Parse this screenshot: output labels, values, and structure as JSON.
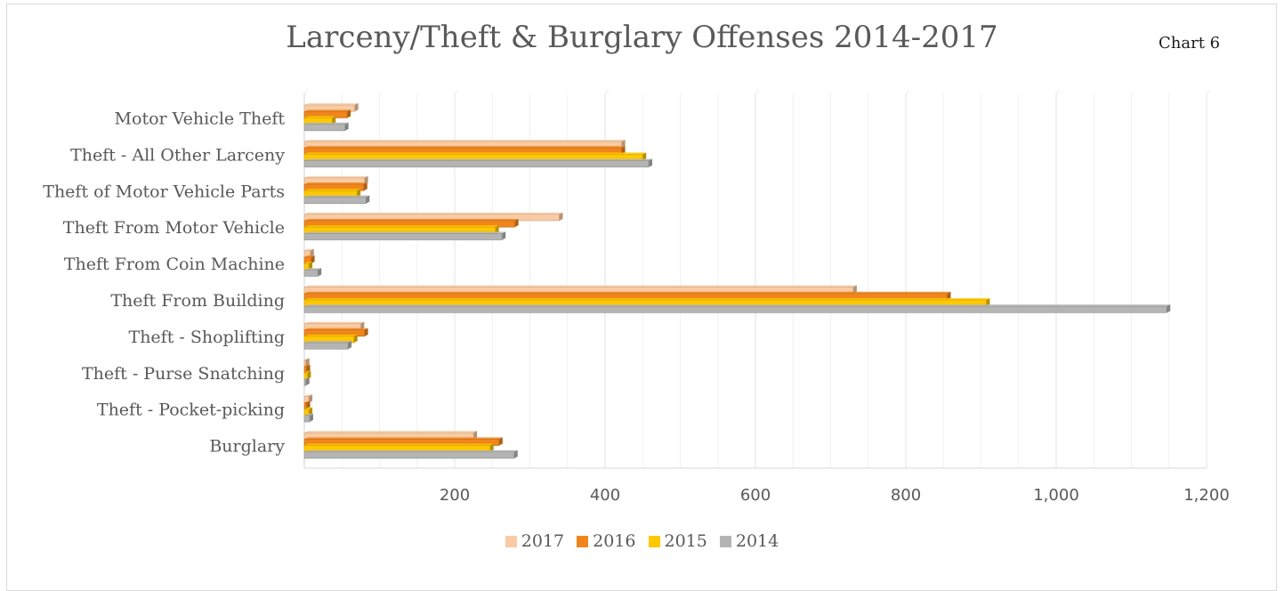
{
  "chart_data": {
    "type": "bar",
    "orientation": "horizontal",
    "title": "Larceny/Theft & Burglary Offenses 2014-2017",
    "tag": "Chart 6",
    "categories": [
      "Motor Vehicle Theft",
      "Theft - All Other Larceny",
      "Theft of Motor Vehicle Parts",
      "Theft From Motor Vehicle",
      "Theft From Coin Machine",
      "Theft From Building",
      "Theft - Shoplifting",
      "Theft - Purse Snatching",
      "Theft - Pocket-picking",
      "Burglary"
    ],
    "series": [
      {
        "name": "2017",
        "color": "#f8cba4",
        "values": [
          67,
          422,
          80,
          339,
          8,
          730,
          75,
          2,
          6,
          225
        ]
      },
      {
        "name": "2016",
        "color": "#f0851c",
        "values": [
          57,
          422,
          79,
          280,
          9,
          855,
          80,
          3,
          3,
          259
        ]
      },
      {
        "name": "2015",
        "color": "#ffc800",
        "values": [
          37,
          450,
          70,
          254,
          6,
          907,
          66,
          4,
          6,
          247
        ]
      },
      {
        "name": "2014",
        "color": "#b4b4b4",
        "values": [
          54,
          458,
          82,
          263,
          18,
          1147,
          58,
          2,
          7,
          279
        ]
      }
    ],
    "xlim": [
      0,
      1200
    ],
    "xticks": [
      200,
      400,
      600,
      800,
      1000,
      1200
    ],
    "xtick_labels": [
      "200",
      "400",
      "600",
      "800",
      "1,000",
      "1,200"
    ],
    "grid": true,
    "legend_position": "bottom"
  }
}
